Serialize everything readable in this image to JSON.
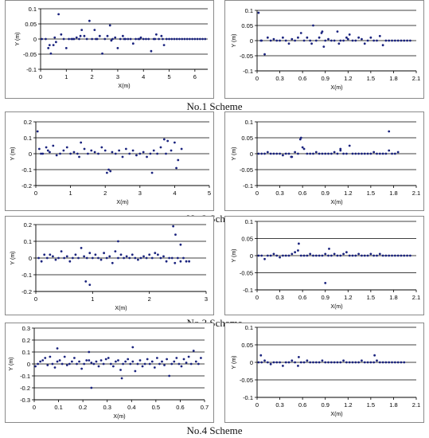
{
  "figure": {
    "captions": [
      "No.1 Scheme",
      "No.2 Scheme",
      "No.3 Scheme",
      "No.4 Scheme"
    ]
  },
  "colors": {
    "marker": "#1a237e",
    "gridline": "#000000",
    "frame": "#8a8a8a"
  },
  "chart_data": [
    {
      "type": "scatter",
      "xlabel": "X(m)",
      "ylabel": "Y (m)",
      "xlim": [
        0,
        6.5
      ],
      "ylim": [
        -0.1,
        0.1
      ],
      "xticks": [
        "0",
        "1",
        "2",
        "3",
        "4",
        "5",
        "6"
      ],
      "xtick_values": [
        0,
        1,
        2,
        3,
        4,
        5,
        6
      ],
      "yticks": [
        "0.1",
        "0.05",
        "0",
        "-0.05",
        "-0.1"
      ],
      "ytick_values": [
        0.1,
        0.05,
        0,
        -0.05,
        -0.1
      ],
      "x": [
        0.05,
        0.2,
        0.3,
        0.4,
        0.5,
        0.6,
        0.7,
        0.8,
        0.9,
        1.0,
        1.1,
        1.2,
        1.3,
        1.4,
        1.5,
        1.6,
        1.7,
        1.8,
        1.9,
        2.0,
        2.1,
        2.2,
        2.3,
        2.4,
        2.5,
        2.6,
        2.7,
        2.8,
        2.9,
        3.0,
        3.1,
        3.2,
        3.3,
        3.4,
        3.5,
        3.6,
        3.7,
        3.8,
        3.9,
        4.0,
        4.1,
        4.2,
        4.3,
        4.4,
        4.5,
        4.6,
        4.7,
        4.8,
        4.9,
        5.0,
        5.1,
        5.2,
        5.3,
        5.4,
        5.5,
        5.6,
        5.7,
        5.8,
        5.9,
        6.0,
        6.1,
        6.2,
        6.3,
        6.4,
        0.35,
        0.55,
        1.55,
        2.15,
        2.75,
        3.25,
        4.45,
        4.75,
        1.25,
        3.85
      ],
      "y": [
        0.0,
        0.0,
        -0.03,
        -0.048,
        -0.02,
        -0.01,
        0.082,
        0.015,
        0.0,
        -0.03,
        0.0,
        0.0,
        0.0,
        0.005,
        0.0,
        0.03,
        0.01,
        0.0,
        0.06,
        0.0,
        0.03,
        0.0,
        0.01,
        -0.048,
        0.0,
        0.01,
        0.045,
        0.0,
        0.005,
        -0.03,
        0.0,
        0.01,
        0.0,
        0.0,
        0.0,
        -0.015,
        0.0,
        0.0,
        0.005,
        0.0,
        0.0,
        0.0,
        -0.04,
        0.0,
        0.015,
        0.0,
        0.01,
        -0.02,
        0.0,
        0.0,
        0.0,
        0.0,
        0.0,
        0.0,
        0.0,
        0.0,
        0.0,
        0.0,
        0.0,
        0.0,
        0.0,
        0.0,
        0.0,
        0.0,
        -0.02,
        0.005,
        0.01,
        0.0,
        -0.005,
        0.0,
        0.0,
        0.0,
        0.0,
        0.0
      ]
    },
    {
      "type": "scatter",
      "xlabel": "X(m)",
      "ylabel": "Y (m)",
      "xlim": [
        0,
        2.1
      ],
      "ylim": [
        -0.1,
        0.1
      ],
      "xticks": [
        "0",
        "0.3",
        "0.6",
        "0.9",
        "1.2",
        "1.5",
        "1.8",
        "2.1"
      ],
      "xtick_values": [
        0,
        0.3,
        0.6,
        0.9,
        1.2,
        1.5,
        1.8,
        2.1
      ],
      "yticks": [
        "0.1",
        "0.05",
        "0",
        "-0.05",
        "-0.1"
      ],
      "ytick_values": [
        0.1,
        0.05,
        0,
        -0.05,
        -0.1
      ],
      "x": [
        0.02,
        0.06,
        0.1,
        0.14,
        0.18,
        0.22,
        0.26,
        0.3,
        0.34,
        0.38,
        0.42,
        0.46,
        0.5,
        0.54,
        0.58,
        0.62,
        0.66,
        0.7,
        0.74,
        0.78,
        0.82,
        0.86,
        0.9,
        0.94,
        0.98,
        1.02,
        1.06,
        1.1,
        1.14,
        1.18,
        1.22,
        1.26,
        1.3,
        1.34,
        1.38,
        1.42,
        1.46,
        1.5,
        1.54,
        1.58,
        1.62,
        1.66,
        1.7,
        1.74,
        1.78,
        1.82,
        1.86,
        1.9,
        1.94,
        1.98,
        2.02,
        0.05,
        0.72,
        0.85,
        0.88,
        1.08,
        1.2
      ],
      "y": [
        0.092,
        0.0,
        -0.045,
        0.01,
        0.0,
        0.005,
        0.0,
        0.0,
        0.01,
        0.0,
        -0.01,
        0.005,
        0.0,
        0.01,
        0.025,
        0.0,
        0.01,
        0.0,
        0.05,
        0.0,
        0.01,
        0.03,
        0.0,
        0.005,
        0.0,
        0.0,
        0.03,
        0.0,
        0.0,
        0.01,
        0.02,
        0.0,
        0.0,
        0.01,
        0.005,
        -0.01,
        0.0,
        0.01,
        0.0,
        0.0,
        0.015,
        -0.015,
        0.0,
        0.0,
        0.0,
        0.0,
        0.0,
        0.0,
        0.0,
        0.0,
        0.0,
        0.0,
        -0.01,
        0.025,
        -0.02,
        -0.01,
        0.005
      ]
    },
    {
      "type": "scatter",
      "xlabel": "X(m)",
      "ylabel": "Y (m)",
      "xlim": [
        0,
        5
      ],
      "ylim": [
        -0.2,
        0.2
      ],
      "xticks": [
        "0",
        "1",
        "2",
        "3",
        "4",
        "5"
      ],
      "xtick_values": [
        0,
        1,
        2,
        3,
        4,
        5
      ],
      "yticks": [
        "0.2",
        "0.1",
        "0",
        "-0.1",
        "-0.2"
      ],
      "ytick_values": [
        0.2,
        0.1,
        0,
        -0.1,
        -0.2
      ],
      "x": [
        0.05,
        0.1,
        0.2,
        0.3,
        0.4,
        0.5,
        0.6,
        0.7,
        0.8,
        0.9,
        1.0,
        1.1,
        1.2,
        1.3,
        1.4,
        1.5,
        1.6,
        1.7,
        1.8,
        1.9,
        2.0,
        2.1,
        2.2,
        2.3,
        2.4,
        2.5,
        2.6,
        2.7,
        2.8,
        2.9,
        3.0,
        3.1,
        3.2,
        3.3,
        3.4,
        3.5,
        3.6,
        3.7,
        3.8,
        3.9,
        4.0,
        4.1,
        4.2,
        0.15,
        0.35,
        1.25,
        2.05,
        2.15,
        3.35,
        3.75,
        4.05
      ],
      "y": [
        0.14,
        0.03,
        0.0,
        0.04,
        0.01,
        0.05,
        -0.01,
        0.0,
        0.02,
        0.04,
        0.0,
        0.01,
        0.0,
        0.07,
        0.03,
        0.0,
        0.02,
        0.01,
        0.0,
        0.04,
        0.02,
        -0.1,
        0.01,
        0.0,
        0.02,
        -0.02,
        0.03,
        0.0,
        0.02,
        -0.01,
        0.0,
        0.01,
        -0.02,
        0.0,
        0.02,
        0.0,
        0.04,
        0.09,
        0.08,
        0.02,
        0.07,
        -0.04,
        0.03,
        0.0,
        0.02,
        -0.02,
        -0.12,
        -0.11,
        -0.12,
        0.0,
        -0.09
      ]
    },
    {
      "type": "scatter",
      "xlabel": "X(m)",
      "ylabel": "Y (m)",
      "xlim": [
        0,
        2.1
      ],
      "ylim": [
        -0.1,
        0.1
      ],
      "xticks": [
        "0",
        "0.3",
        "0.6",
        "0.9",
        "1.2",
        "1.5",
        "1.8",
        "2.1"
      ],
      "xtick_values": [
        0,
        0.3,
        0.6,
        0.9,
        1.2,
        1.5,
        1.8,
        2.1
      ],
      "yticks": [
        "0.1",
        "0.05",
        "0",
        "-0.05",
        "-0.1"
      ],
      "ytick_values": [
        0.1,
        0.05,
        0,
        -0.05,
        -0.1
      ],
      "x": [
        0.02,
        0.06,
        0.1,
        0.14,
        0.18,
        0.22,
        0.26,
        0.3,
        0.34,
        0.38,
        0.42,
        0.46,
        0.5,
        0.54,
        0.58,
        0.62,
        0.66,
        0.7,
        0.74,
        0.78,
        0.82,
        0.86,
        0.9,
        0.94,
        0.98,
        1.02,
        1.06,
        1.1,
        1.14,
        1.18,
        1.22,
        1.26,
        1.3,
        1.34,
        1.38,
        1.42,
        1.46,
        1.5,
        1.54,
        1.58,
        1.62,
        1.66,
        1.7,
        1.74,
        1.78,
        1.82,
        1.86,
        0.57,
        1.74,
        1.1,
        0.45,
        0.6
      ],
      "y": [
        0.0,
        0.0,
        0.0,
        0.005,
        0.0,
        0.0,
        0.0,
        0.0,
        -0.005,
        0.0,
        0.0,
        -0.01,
        0.005,
        0.0,
        0.05,
        0.015,
        0.0,
        0.0,
        0.0,
        0.005,
        0.0,
        0.0,
        0.0,
        0.0,
        0.0,
        0.005,
        0.0,
        0.01,
        0.0,
        0.0,
        0.025,
        0.0,
        0.0,
        0.0,
        0.0,
        0.0,
        0.0,
        0.0,
        0.005,
        0.0,
        0.0,
        0.0,
        0.0,
        0.01,
        0.0,
        0.0,
        0.005,
        0.045,
        0.07,
        0.015,
        -0.01,
        0.02
      ]
    },
    {
      "type": "scatter",
      "xlabel": "X(m)",
      "ylabel": "Y (m)",
      "xlim": [
        0,
        3
      ],
      "ylim": [
        -0.2,
        0.2
      ],
      "xticks": [
        "0",
        "1",
        "2",
        "3"
      ],
      "xtick_values": [
        0,
        1,
        2,
        3
      ],
      "yticks": [
        "0.2",
        "0.1",
        "0",
        "-0.1",
        "-0.2"
      ],
      "ytick_values": [
        0.2,
        0.1,
        0,
        -0.1,
        -0.2
      ],
      "x": [
        0.05,
        0.1,
        0.15,
        0.2,
        0.25,
        0.3,
        0.35,
        0.4,
        0.45,
        0.5,
        0.55,
        0.6,
        0.65,
        0.7,
        0.75,
        0.8,
        0.85,
        0.9,
        0.95,
        1.0,
        1.05,
        1.1,
        1.15,
        1.2,
        1.25,
        1.3,
        1.35,
        1.4,
        1.45,
        1.5,
        1.55,
        1.6,
        1.65,
        1.7,
        1.75,
        1.8,
        1.85,
        1.9,
        1.95,
        2.0,
        2.05,
        2.1,
        2.15,
        2.2,
        2.25,
        2.3,
        2.35,
        2.4,
        2.45,
        2.5,
        2.55,
        2.6,
        2.65,
        2.7,
        0.88,
        0.95,
        1.45,
        2.42,
        2.46,
        2.55
      ],
      "y": [
        0.0,
        -0.02,
        0.02,
        0.0,
        0.02,
        0.01,
        -0.01,
        0.0,
        0.04,
        0.0,
        0.01,
        -0.02,
        0.0,
        0.02,
        0.0,
        0.06,
        0.01,
        0.0,
        0.03,
        0.0,
        0.02,
        0.0,
        -0.01,
        0.03,
        0.0,
        0.01,
        -0.03,
        0.04,
        0.0,
        0.02,
        0.0,
        0.01,
        0.0,
        0.02,
        0.0,
        -0.01,
        0.0,
        0.01,
        0.0,
        0.02,
        0.0,
        0.03,
        0.02,
        0.0,
        0.01,
        -0.02,
        0.0,
        0.0,
        -0.03,
        0.0,
        -0.02,
        0.0,
        -0.02,
        -0.02,
        -0.14,
        -0.16,
        0.1,
        0.19,
        0.14,
        0.08
      ]
    },
    {
      "type": "scatter",
      "xlabel": "X(m)",
      "ylabel": "Y (m)",
      "xlim": [
        0,
        2.1
      ],
      "ylim": [
        -0.1,
        0.1
      ],
      "xticks": [
        "0",
        "0.3",
        "0.6",
        "0.9",
        "1.2",
        "1.5",
        "1.8",
        "2.1"
      ],
      "xtick_values": [
        0,
        0.3,
        0.6,
        0.9,
        1.2,
        1.5,
        1.8,
        2.1
      ],
      "yticks": [
        "0.1",
        "0.05",
        "0",
        "-0.05",
        "-0.1"
      ],
      "ytick_values": [
        0.1,
        0.05,
        0,
        -0.05,
        -0.1
      ],
      "x": [
        0.02,
        0.06,
        0.1,
        0.14,
        0.18,
        0.22,
        0.26,
        0.3,
        0.34,
        0.38,
        0.42,
        0.46,
        0.5,
        0.54,
        0.58,
        0.62,
        0.66,
        0.7,
        0.74,
        0.78,
        0.82,
        0.86,
        0.9,
        0.94,
        0.98,
        1.02,
        1.06,
        1.1,
        1.14,
        1.18,
        1.22,
        1.26,
        1.3,
        1.34,
        1.38,
        1.42,
        1.46,
        1.5,
        1.54,
        1.58,
        1.62,
        1.66,
        1.7,
        1.74,
        1.78,
        1.82,
        1.86,
        1.9,
        1.94,
        1.98,
        2.02,
        0.55,
        0.9,
        0.95
      ],
      "y": [
        0.0,
        0.0,
        -0.01,
        0.0,
        0.0,
        0.005,
        0.0,
        -0.005,
        0.0,
        0.0,
        0.0,
        0.005,
        0.01,
        0.015,
        0.0,
        0.0,
        0.0,
        0.005,
        0.0,
        0.0,
        0.0,
        0.0,
        0.005,
        0.0,
        0.0,
        0.005,
        0.0,
        0.0,
        0.005,
        0.01,
        0.0,
        0.0,
        0.0,
        0.005,
        0.0,
        0.0,
        0.0,
        0.005,
        0.0,
        0.0,
        0.005,
        0.0,
        0.0,
        0.0,
        0.0,
        0.0,
        0.0,
        0.0,
        0.0,
        0.0,
        0.0,
        0.035,
        -0.08,
        0.02
      ]
    },
    {
      "type": "scatter",
      "xlabel": "X(m)",
      "ylabel": "Y (m)",
      "xlim": [
        0,
        0.7
      ],
      "ylim": [
        -0.3,
        0.3
      ],
      "xticks": [
        "0",
        "0.1",
        "0.2",
        "0.3",
        "0.4",
        "0.5",
        "0.6",
        "0.7"
      ],
      "xtick_values": [
        0,
        0.1,
        0.2,
        0.3,
        0.4,
        0.5,
        0.6,
        0.7
      ],
      "yticks": [
        "0.3",
        "0.2",
        "0.1",
        "0",
        "-0.1",
        "-0.2",
        "-0.3"
      ],
      "ytick_values": [
        0.3,
        0.2,
        0.1,
        0,
        -0.1,
        -0.2,
        -0.3
      ],
      "x": [
        0.005,
        0.015,
        0.025,
        0.035,
        0.045,
        0.055,
        0.065,
        0.075,
        0.085,
        0.095,
        0.105,
        0.115,
        0.125,
        0.135,
        0.145,
        0.155,
        0.165,
        0.175,
        0.185,
        0.195,
        0.205,
        0.215,
        0.225,
        0.235,
        0.245,
        0.255,
        0.265,
        0.275,
        0.285,
        0.295,
        0.305,
        0.315,
        0.325,
        0.335,
        0.345,
        0.355,
        0.365,
        0.375,
        0.385,
        0.395,
        0.405,
        0.415,
        0.425,
        0.435,
        0.445,
        0.455,
        0.465,
        0.475,
        0.485,
        0.495,
        0.505,
        0.515,
        0.525,
        0.535,
        0.545,
        0.555,
        0.565,
        0.575,
        0.585,
        0.595,
        0.605,
        0.615,
        0.625,
        0.635,
        0.645,
        0.655,
        0.665,
        0.675,
        0.685,
        0.095,
        0.225,
        0.405,
        0.235,
        0.36
      ],
      "y": [
        -0.02,
        0.0,
        0.02,
        0.03,
        0.05,
        -0.01,
        0.06,
        0.0,
        -0.03,
        0.02,
        0.03,
        0.0,
        0.06,
        -0.01,
        0.0,
        0.02,
        0.05,
        0.0,
        0.02,
        -0.04,
        0.0,
        0.03,
        0.1,
        0.01,
        0.0,
        0.02,
        -0.02,
        0.03,
        0.0,
        0.04,
        0.05,
        0.0,
        -0.02,
        0.02,
        0.03,
        -0.05,
        0.0,
        0.02,
        0.04,
        0.0,
        0.02,
        -0.06,
        0.0,
        0.03,
        -0.02,
        0.0,
        0.04,
        0.0,
        0.02,
        -0.03,
        0.05,
        0.0,
        0.02,
        -0.01,
        0.04,
        -0.1,
        0.0,
        0.02,
        0.05,
        0.0,
        -0.02,
        0.04,
        0.01,
        0.06,
        0.0,
        0.11,
        0.02,
        0.0,
        0.05,
        0.13,
        0.03,
        0.14,
        -0.2,
        -0.12
      ]
    },
    {
      "type": "scatter",
      "xlabel": "X(m)",
      "ylabel": "Y (m)",
      "xlim": [
        0,
        2.1
      ],
      "ylim": [
        -0.1,
        0.1
      ],
      "xticks": [
        "0",
        "0.3",
        "0.6",
        "0.9",
        "1.2",
        "1.5",
        "1.8",
        "2.1"
      ],
      "xtick_values": [
        0,
        0.3,
        0.6,
        0.9,
        1.2,
        1.5,
        1.8,
        2.1
      ],
      "yticks": [
        "0.1",
        "0.05",
        "0",
        "-0.05",
        "-0.1"
      ],
      "ytick_values": [
        0.1,
        0.05,
        0,
        -0.05,
        -0.1
      ],
      "x": [
        0.02,
        0.06,
        0.1,
        0.14,
        0.18,
        0.22,
        0.26,
        0.3,
        0.34,
        0.38,
        0.42,
        0.46,
        0.5,
        0.54,
        0.58,
        0.62,
        0.66,
        0.7,
        0.74,
        0.78,
        0.82,
        0.86,
        0.9,
        0.94,
        0.98,
        1.02,
        1.06,
        1.1,
        1.14,
        1.18,
        1.22,
        1.26,
        1.3,
        1.34,
        1.38,
        1.42,
        1.46,
        1.5,
        1.54,
        1.58,
        1.62,
        1.66,
        1.7,
        1.74,
        1.78,
        1.82,
        1.86,
        1.9,
        1.94,
        0.05,
        0.55,
        1.55
      ],
      "y": [
        0.0,
        0.0,
        0.005,
        0.0,
        -0.005,
        0.0,
        0.0,
        0.0,
        -0.01,
        0.0,
        0.0,
        0.005,
        0.0,
        -0.01,
        0.0,
        0.0,
        0.005,
        0.0,
        0.0,
        0.0,
        0.0,
        0.005,
        0.0,
        0.0,
        0.0,
        0.0,
        0.0,
        0.0,
        0.005,
        0.0,
        0.0,
        0.0,
        0.0,
        0.0,
        0.005,
        0.0,
        0.0,
        0.0,
        0.0,
        0.005,
        0.0,
        0.0,
        0.0,
        0.0,
        0.0,
        0.0,
        0.0,
        0.0,
        0.0,
        0.02,
        0.015,
        0.02
      ]
    }
  ]
}
